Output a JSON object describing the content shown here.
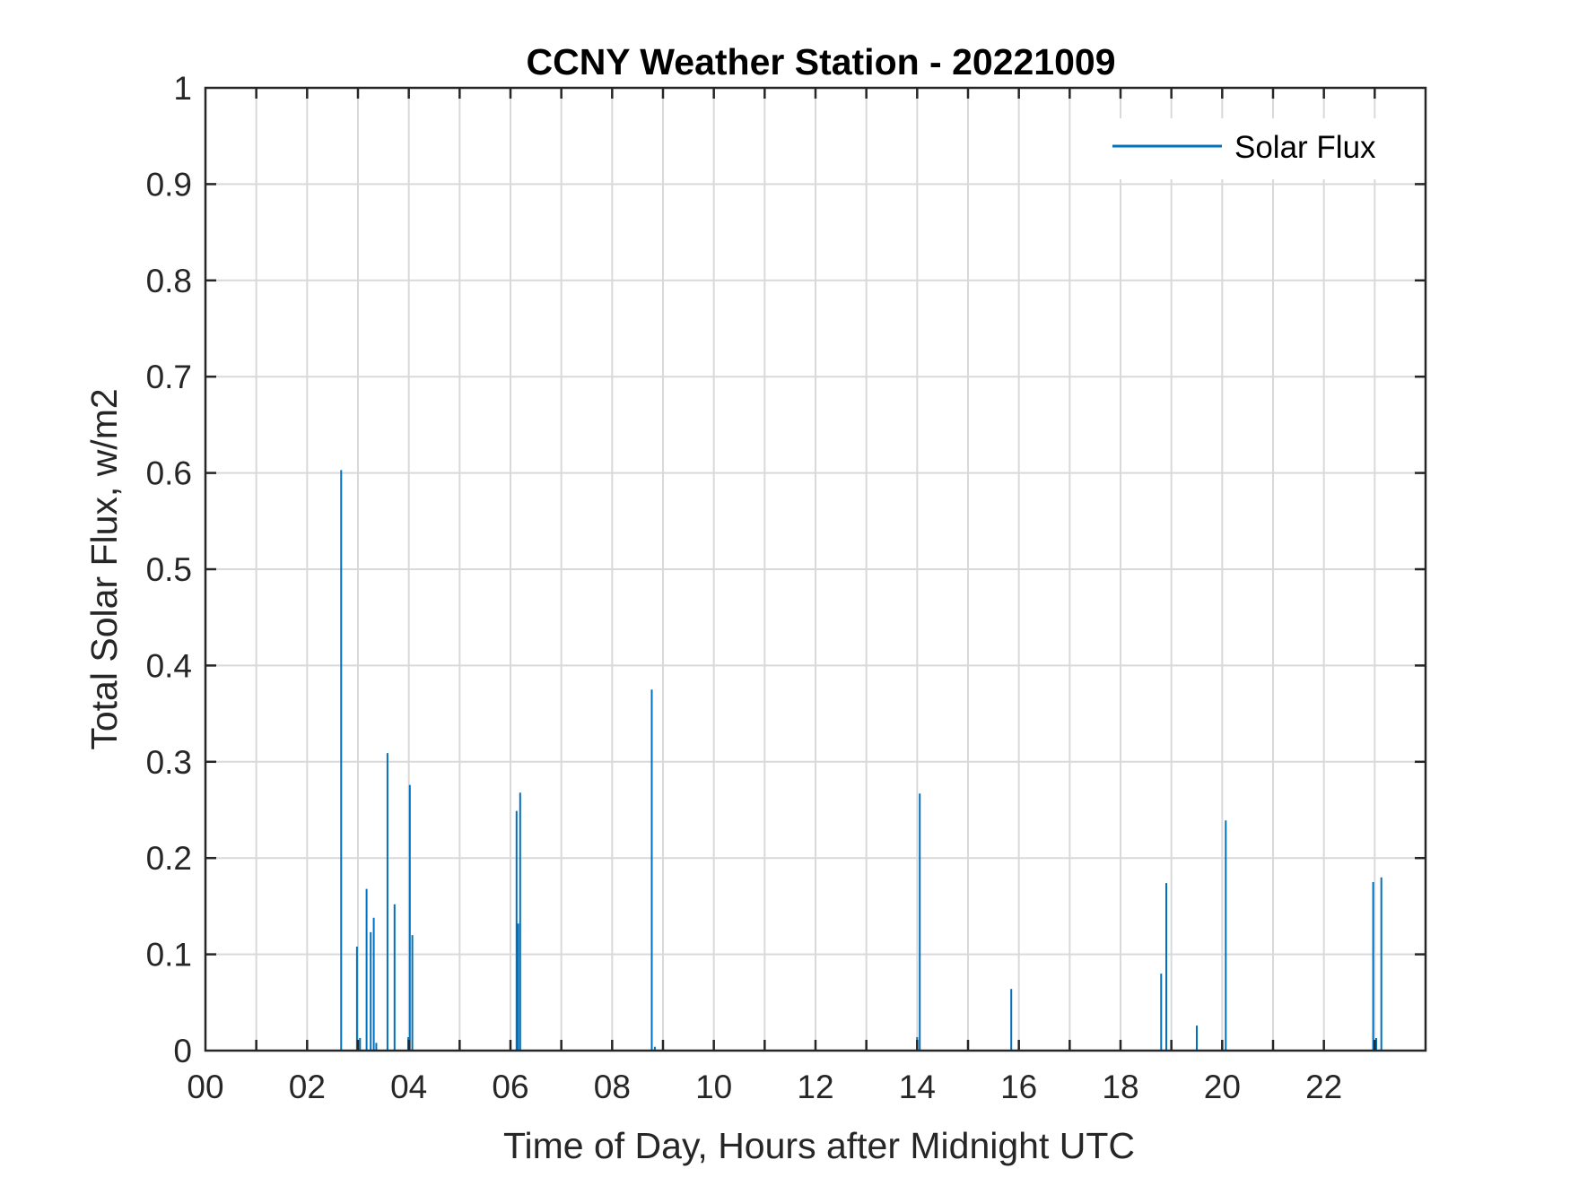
{
  "chart_data": {
    "type": "line",
    "title": "CCNY Weather Station - 20221009",
    "xlabel": "Time of Day, Hours after Midnight UTC",
    "ylabel": "Total Solar Flux, w/m2",
    "xlim": [
      0,
      24
    ],
    "ylim": [
      0,
      1
    ],
    "grid": true,
    "legend_position": "top-right",
    "x_ticks": [
      {
        "value": 0,
        "label": "00"
      },
      {
        "value": 2,
        "label": "02"
      },
      {
        "value": 4,
        "label": "04"
      },
      {
        "value": 6,
        "label": "06"
      },
      {
        "value": 8,
        "label": "08"
      },
      {
        "value": 10,
        "label": "10"
      },
      {
        "value": 12,
        "label": "12"
      },
      {
        "value": 14,
        "label": "14"
      },
      {
        "value": 16,
        "label": "16"
      },
      {
        "value": 18,
        "label": "18"
      },
      {
        "value": 20,
        "label": "20"
      },
      {
        "value": 22,
        "label": "22"
      }
    ],
    "x_minor_grid": [
      1,
      3,
      5,
      7,
      9,
      11,
      13,
      15,
      17,
      19,
      21,
      23
    ],
    "y_ticks": [
      {
        "value": 0,
        "label": "0"
      },
      {
        "value": 0.1,
        "label": "0.1"
      },
      {
        "value": 0.2,
        "label": "0.2"
      },
      {
        "value": 0.3,
        "label": "0.3"
      },
      {
        "value": 0.4,
        "label": "0.4"
      },
      {
        "value": 0.5,
        "label": "0.5"
      },
      {
        "value": 0.6,
        "label": "0.6"
      },
      {
        "value": 0.7,
        "label": "0.7"
      },
      {
        "value": 0.8,
        "label": "0.8"
      },
      {
        "value": 0.9,
        "label": "0.9"
      },
      {
        "value": 1,
        "label": "1"
      }
    ],
    "series": [
      {
        "name": "Solar Flux",
        "color": "#0072BD",
        "points": [
          {
            "x": 2.67,
            "y": 0.603
          },
          {
            "x": 2.98,
            "y": 0.108
          },
          {
            "x": 3.04,
            "y": 0.013
          },
          {
            "x": 3.17,
            "y": 0.168
          },
          {
            "x": 3.25,
            "y": 0.123
          },
          {
            "x": 3.31,
            "y": 0.138
          },
          {
            "x": 3.36,
            "y": 0.008
          },
          {
            "x": 3.58,
            "y": 0.309
          },
          {
            "x": 3.72,
            "y": 0.152
          },
          {
            "x": 3.99,
            "y": 0.014
          },
          {
            "x": 4.02,
            "y": 0.276
          },
          {
            "x": 4.07,
            "y": 0.12
          },
          {
            "x": 6.12,
            "y": 0.249
          },
          {
            "x": 6.15,
            "y": 0.132
          },
          {
            "x": 6.19,
            "y": 0.268
          },
          {
            "x": 8.78,
            "y": 0.375
          },
          {
            "x": 8.84,
            "y": 0.004
          },
          {
            "x": 14.0,
            "y": 0.014
          },
          {
            "x": 14.05,
            "y": 0.267
          },
          {
            "x": 15.85,
            "y": 0.064
          },
          {
            "x": 18.8,
            "y": 0.08
          },
          {
            "x": 18.9,
            "y": 0.174
          },
          {
            "x": 19.5,
            "y": 0.026
          },
          {
            "x": 20.0,
            "y": 0.006
          },
          {
            "x": 20.07,
            "y": 0.239
          },
          {
            "x": 22.97,
            "y": 0.175
          },
          {
            "x": 23.03,
            "y": 0.013
          },
          {
            "x": 23.13,
            "y": 0.18
          }
        ]
      }
    ]
  }
}
